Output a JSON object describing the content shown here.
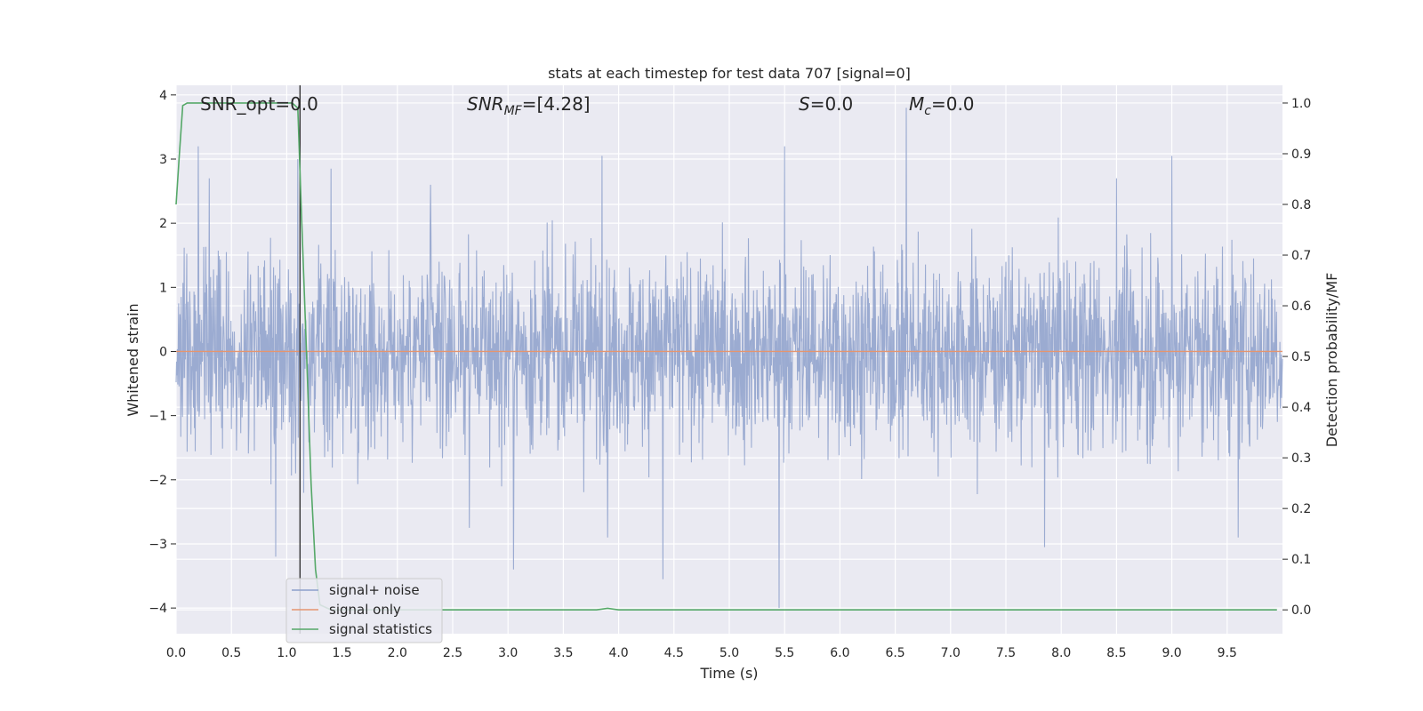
{
  "chart_data": {
    "type": "line",
    "title": "stats at each timestep for test data 707 [signal=0]",
    "xlabel": "Time (s)",
    "ylabel_left": "Whitened strain",
    "ylabel_right": "Detection probability/MF",
    "xlim": [
      0.0,
      10.0
    ],
    "ylim_left": [
      -4.4,
      4.15
    ],
    "ylim_right": [
      -0.047,
      1.035
    ],
    "x_ticks": [
      "0.0",
      "0.5",
      "1.0",
      "1.5",
      "2.0",
      "2.5",
      "3.0",
      "3.5",
      "4.0",
      "4.5",
      "5.0",
      "5.5",
      "6.0",
      "6.5",
      "7.0",
      "7.5",
      "8.0",
      "8.5",
      "9.0",
      "9.5"
    ],
    "y_ticks_left": [
      "−4",
      "−3",
      "−2",
      "−1",
      "0",
      "1",
      "2",
      "3",
      "4"
    ],
    "y_ticks_right": [
      "0.0",
      "0.1",
      "0.2",
      "0.3",
      "0.4",
      "0.5",
      "0.6",
      "0.7",
      "0.8",
      "0.9",
      "1.0"
    ],
    "grid": true,
    "legend_position": "lower-left",
    "annotations": {
      "snr_opt": "SNR_opt=0.0",
      "snr_mf_sym": "SNR",
      "snr_mf_sub": "MF",
      "snr_mf_val": "=[4.28]",
      "s_sym": "S",
      "s_val": "=0.0",
      "mc_sym": "M",
      "mc_sub": "c",
      "mc_val": "=0.0"
    },
    "vertical_line_x": 1.12,
    "series": [
      {
        "name": "signal+ noise",
        "axis": "left",
        "color": "#8da0cb",
        "style": "noise",
        "envelope_typical": [
          -1.4,
          1.4
        ],
        "peaks": [
          {
            "x": 0.2,
            "y": 3.2
          },
          {
            "x": 0.3,
            "y": 2.7
          },
          {
            "x": 0.9,
            "y": -3.2
          },
          {
            "x": 1.1,
            "y": 3.0
          },
          {
            "x": 1.4,
            "y": 2.85
          },
          {
            "x": 2.3,
            "y": 2.6
          },
          {
            "x": 2.65,
            "y": -2.75
          },
          {
            "x": 3.05,
            "y": -3.4
          },
          {
            "x": 3.85,
            "y": 3.05
          },
          {
            "x": 3.9,
            "y": -2.9
          },
          {
            "x": 4.4,
            "y": -3.55
          },
          {
            "x": 5.5,
            "y": 3.2
          },
          {
            "x": 5.45,
            "y": -4.0
          },
          {
            "x": 6.6,
            "y": 3.8
          },
          {
            "x": 7.85,
            "y": -3.05
          },
          {
            "x": 8.5,
            "y": 2.7
          },
          {
            "x": 9.0,
            "y": 3.05
          },
          {
            "x": 9.6,
            "y": -2.9
          }
        ]
      },
      {
        "name": "signal only",
        "axis": "left",
        "color": "#e5956f",
        "x": [
          0.0,
          10.0
        ],
        "y": [
          0.0,
          0.0
        ]
      },
      {
        "name": "signal statistics",
        "axis": "right",
        "color": "#55a868",
        "x": [
          0.0,
          0.03,
          0.06,
          0.1,
          0.5,
          1.05,
          1.1,
          1.13,
          1.18,
          1.22,
          1.26,
          1.3,
          1.4,
          2.0,
          3.8,
          3.9,
          4.0,
          9.95
        ],
        "y": [
          0.8,
          0.9,
          0.995,
          1.0,
          1.0,
          1.0,
          0.99,
          0.8,
          0.5,
          0.25,
          0.08,
          0.01,
          0.0,
          0.0,
          0.0,
          0.003,
          0.0,
          0.0
        ]
      }
    ]
  }
}
